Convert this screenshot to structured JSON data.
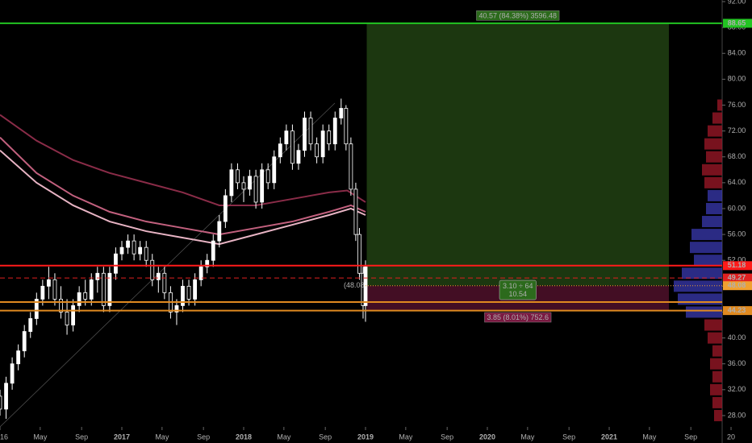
{
  "chart_data": {
    "type": "candlestick",
    "xlim": [
      2016.0,
      2021.927
    ],
    "ylim": [
      26.25,
      92.25
    ],
    "xticks": [
      {
        "value": 2016.0,
        "label": "16"
      },
      {
        "value": 2016.33,
        "label": "May"
      },
      {
        "value": 2016.67,
        "label": "Sep"
      },
      2017,
      {
        "value": 2017.33,
        "label": "May"
      },
      {
        "value": 2017.67,
        "label": "Sep"
      },
      2018,
      {
        "value": 2018.33,
        "label": "May"
      },
      {
        "value": 2018.67,
        "label": "Sep"
      },
      2019,
      {
        "value": 2019.33,
        "label": "May"
      },
      {
        "value": 2019.67,
        "label": "Sep"
      },
      2020,
      {
        "value": 2020.33,
        "label": "May"
      },
      {
        "value": 2020.67,
        "label": "Sep"
      },
      2021,
      {
        "value": 2021.33,
        "label": "May"
      },
      {
        "value": 2021.67,
        "label": "Sep"
      },
      {
        "value": 2022.0,
        "label": "20"
      }
    ],
    "yticks": [
      {
        "value": 28,
        "label": "28.00"
      },
      {
        "value": 32,
        "label": "32.00"
      },
      {
        "value": 36,
        "label": "36.00"
      },
      {
        "value": 40,
        "label": "40.00"
      },
      {
        "value": 44,
        "label": "44.00"
      },
      {
        "value": 48,
        "label": "48.00"
      },
      {
        "value": 52,
        "label": "52.00"
      },
      {
        "value": 56,
        "label": "56.00"
      },
      {
        "value": 60,
        "label": "60.00"
      },
      {
        "value": 64,
        "label": "64.00"
      },
      {
        "value": 68,
        "label": "68.00"
      },
      {
        "value": 72,
        "label": "72.00"
      },
      {
        "value": 76,
        "label": "76.00"
      },
      {
        "value": 80,
        "label": "80.00"
      },
      {
        "value": 84,
        "label": "84.00"
      },
      {
        "value": 88,
        "label": "88.00"
      },
      {
        "value": 92,
        "label": "92.00"
      }
    ],
    "candles": {
      "up_color": "#ffffff",
      "down_color": "#000000",
      "x": [
        2016.0,
        2016.05,
        2016.1,
        2016.15,
        2016.2,
        2016.25,
        2016.3,
        2016.35,
        2016.4,
        2016.45,
        2016.5,
        2016.55,
        2016.6,
        2016.65,
        2016.7,
        2016.75,
        2016.8,
        2016.85,
        2016.9,
        2016.95,
        2017.0,
        2017.05,
        2017.1,
        2017.15,
        2017.2,
        2017.25,
        2017.3,
        2017.35,
        2017.4,
        2017.45,
        2017.5,
        2017.55,
        2017.6,
        2017.65,
        2017.7,
        2017.75,
        2017.8,
        2017.85,
        2017.9,
        2017.95,
        2018.0,
        2018.05,
        2018.1,
        2018.15,
        2018.2,
        2018.25,
        2018.3,
        2018.35,
        2018.4,
        2018.45,
        2018.5,
        2018.55,
        2018.6,
        2018.65,
        2018.7,
        2018.75,
        2018.8,
        2018.84,
        2018.88,
        2018.92,
        2018.95,
        2018.98,
        2019.0
      ],
      "open": [
        31,
        29,
        33,
        36,
        38,
        41,
        43,
        46,
        48,
        49,
        46,
        44,
        42,
        45,
        47,
        46,
        49,
        50,
        45,
        50,
        53,
        54,
        55,
        53,
        54,
        52,
        49,
        50,
        47,
        44,
        45,
        48,
        46,
        49,
        51,
        52,
        55,
        58,
        62,
        66,
        64,
        63,
        65,
        61,
        66,
        64,
        68,
        70,
        72,
        67,
        69,
        74,
        70,
        68,
        72,
        70,
        74,
        75.5,
        70,
        63,
        56,
        50,
        45
      ],
      "high": [
        32,
        34,
        37,
        39,
        42,
        44,
        47,
        49,
        51,
        50,
        48,
        46,
        46,
        48,
        49,
        50,
        51,
        51,
        51,
        54,
        55,
        56,
        56,
        55,
        55,
        53,
        51,
        51,
        48,
        46,
        49,
        49,
        50,
        52,
        53,
        56,
        59,
        63,
        67,
        67,
        65,
        66,
        66,
        67,
        67,
        69,
        71,
        73,
        73,
        70,
        75,
        75,
        71,
        73,
        73,
        75,
        77,
        76,
        71,
        64,
        57,
        51,
        52
      ],
      "low": [
        28,
        27.5,
        32,
        35,
        37,
        40,
        42,
        45,
        46,
        45,
        43,
        40.5,
        41,
        44,
        45,
        45,
        47,
        44,
        44,
        49,
        52,
        53,
        52,
        52,
        51,
        48,
        47,
        46,
        43,
        42,
        44,
        45,
        45,
        48,
        50,
        51,
        54,
        57,
        61,
        63,
        61,
        62,
        60,
        60,
        63,
        63,
        67,
        69,
        66,
        66,
        68,
        69,
        67,
        67,
        69,
        69,
        73,
        69,
        62,
        55,
        49,
        43,
        42.5
      ],
      "close": [
        29,
        33,
        36,
        38,
        41,
        43,
        46,
        48,
        49,
        46,
        44,
        42,
        45,
        47,
        46,
        49,
        50,
        45,
        50,
        53,
        54,
        55,
        53,
        54,
        52,
        49,
        50,
        47,
        44,
        45,
        48,
        46,
        49,
        51,
        52,
        55,
        58,
        62,
        66,
        64,
        63,
        65,
        61,
        66,
        64,
        68,
        70,
        72,
        67,
        69,
        74,
        70,
        68,
        72,
        70,
        74,
        75.5,
        70,
        63,
        56,
        50,
        45,
        51
      ]
    },
    "series": [
      {
        "color": "#8a2c48",
        "x": [
          2016.0,
          2016.3,
          2016.6,
          2016.9,
          2017.2,
          2017.5,
          2017.8,
          2018.1,
          2018.4,
          2018.7,
          2018.85,
          2019.0
        ],
        "values": [
          74.5,
          70.5,
          67.5,
          65.5,
          64.0,
          62.5,
          60.5,
          60.5,
          61.5,
          62.5,
          62.8,
          61.0
        ]
      },
      {
        "color": "#c2607e",
        "x": [
          2016.0,
          2016.3,
          2016.6,
          2016.9,
          2017.2,
          2017.5,
          2017.8,
          2018.1,
          2018.4,
          2018.7,
          2018.88,
          2019.0
        ],
        "values": [
          71.0,
          65.5,
          62.0,
          59.5,
          58.0,
          57.0,
          56.0,
          57.0,
          58.0,
          59.5,
          60.5,
          59.5
        ]
      },
      {
        "color": "#e8b4c4",
        "x": [
          2016.0,
          2016.3,
          2016.6,
          2016.9,
          2017.2,
          2017.5,
          2017.8,
          2018.1,
          2018.4,
          2018.7,
          2018.88,
          2019.0
        ],
        "values": [
          69.0,
          64.0,
          60.5,
          58.0,
          56.5,
          55.5,
          54.5,
          56.0,
          57.5,
          59.0,
          60.0,
          59.0
        ]
      }
    ],
    "levels": [
      {
        "value": 88.65,
        "color": "#22c422",
        "dash": "",
        "axis_label": true
      },
      {
        "value": 51.18,
        "color": "#ff1a1a",
        "dash": "",
        "axis_label": true
      },
      {
        "value": 49.27,
        "color": "#e02020",
        "dash": "6 4",
        "axis_label": true
      },
      {
        "value": 48.08,
        "color": "#f0a030",
        "dash": "1 2",
        "axis_label": true,
        "from": 2019.0
      },
      {
        "value": 45.55,
        "color": "#e08a20",
        "dash": "",
        "axis_label": false
      },
      {
        "value": 44.23,
        "color": "#e08a20",
        "dash": "",
        "axis_label": true
      }
    ],
    "position": {
      "start": 2019.01,
      "end": 2021.49,
      "target": 88.65,
      "entry": 48.08,
      "stop": 44.23,
      "target_label": "40.57 (84.38%) 3596.48",
      "entry_label": "(48.08",
      "ratio_label": "3.10 ÷ 64",
      "ratio_sub": "10.54",
      "stop_label": "3.85 (8.01%) 752.6"
    },
    "volume_profile": {
      "vlim": [
        0,
        100
      ],
      "prices": [
        28,
        30,
        32,
        34,
        36,
        38,
        40,
        42,
        44,
        46,
        48,
        50,
        52,
        54,
        56,
        58,
        60,
        62,
        64,
        66,
        68,
        70,
        72,
        74,
        76
      ],
      "volumes": [
        10,
        12,
        15,
        12,
        15,
        12,
        18,
        22,
        45,
        55,
        60,
        50,
        35,
        40,
        38,
        25,
        20,
        18,
        22,
        25,
        20,
        22,
        18,
        12,
        6
      ],
      "colors": [
        "#a01828",
        "#a01828",
        "#a01828",
        "#a01828",
        "#a01828",
        "#a01828",
        "#a01828",
        "#a01828",
        "#3a3ab0",
        "#3a3ab0",
        "#3a3ab0",
        "#3a3ab0",
        "#3a3ab0",
        "#3a3ab0",
        "#3a3ab0",
        "#3a3ab0",
        "#3a3ab0",
        "#3a3ab0",
        "#a01828",
        "#a01828",
        "#a01828",
        "#a01828",
        "#a01828",
        "#a01828",
        "#a01828"
      ]
    }
  }
}
